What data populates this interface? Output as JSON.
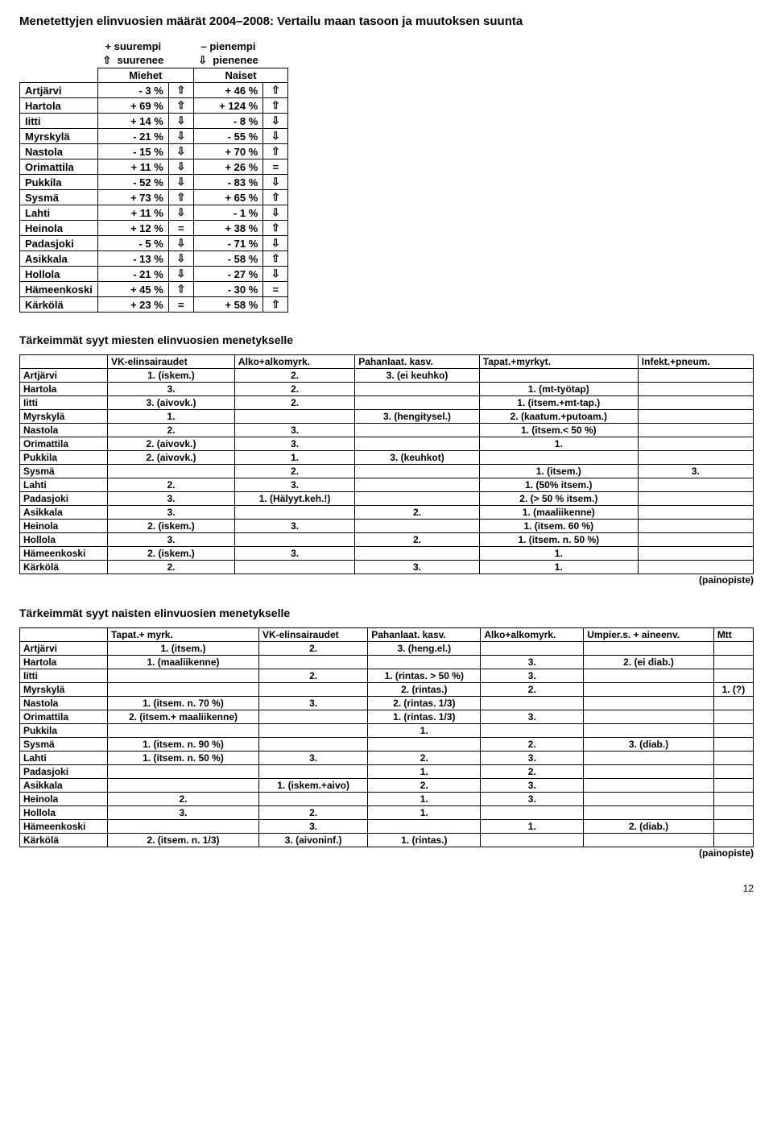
{
  "title_main": "Menetettyjen elinvuosien määrät 2004–2008: Vertailu maan tasoon ja muutoksen suunta",
  "legend": {
    "plus": "+ suurempi",
    "minus": "– pienempi",
    "up_word": "suurenee",
    "down_word": "pienenee",
    "up_glyph": "⇧",
    "down_glyph": "⇩"
  },
  "t1": {
    "head_men": "Miehet",
    "head_women": "Naiset",
    "rows": [
      {
        "n": "Artjärvi",
        "m": "- 3 %",
        "ma": "⇧",
        "w": "+ 46 %",
        "wa": "⇧"
      },
      {
        "n": "Hartola",
        "m": "+ 69 %",
        "ma": "⇧",
        "w": "+ 124 %",
        "wa": "⇧"
      },
      {
        "n": "Iitti",
        "m": "+ 14 %",
        "ma": "⇩",
        "w": "- 8 %",
        "wa": "⇩"
      },
      {
        "n": "Myrskylä",
        "m": "- 21 %",
        "ma": "⇩",
        "w": "- 55 %",
        "wa": "⇩"
      },
      {
        "n": "Nastola",
        "m": "- 15 %",
        "ma": "⇩",
        "w": "+ 70 %",
        "wa": "⇧"
      },
      {
        "n": "Orimattila",
        "m": "+ 11 %",
        "ma": "⇩",
        "w": "+ 26 %",
        "wa": "="
      },
      {
        "n": "Pukkila",
        "m": "- 52 %",
        "ma": "⇩",
        "w": "- 83 %",
        "wa": "⇩"
      },
      {
        "n": "Sysmä",
        "m": "+ 73 %",
        "ma": "⇧",
        "w": "+ 65 %",
        "wa": "⇧"
      },
      {
        "n": "Lahti",
        "m": "+ 11 %",
        "ma": "⇩",
        "w": "- 1 %",
        "wa": "⇩"
      },
      {
        "n": "Heinola",
        "m": "+ 12 %",
        "ma": "=",
        "w": "+ 38 %",
        "wa": "⇧"
      },
      {
        "n": "Padasjoki",
        "m": "- 5 %",
        "ma": "⇩",
        "w": "- 71 %",
        "wa": "⇩"
      },
      {
        "n": "Asikkala",
        "m": "- 13 %",
        "ma": "⇩",
        "w": "- 58 %",
        "wa": "⇧"
      },
      {
        "n": "Hollola",
        "m": "- 21 %",
        "ma": "⇩",
        "w": "- 27 %",
        "wa": "⇩"
      },
      {
        "n": "Hämeenkoski",
        "m": "+ 45 %",
        "ma": "⇧",
        "w": "- 30 %",
        "wa": "="
      },
      {
        "n": "Kärkölä",
        "m": "+ 23 %",
        "ma": "=",
        "w": "+ 58 %",
        "wa": "⇧"
      }
    ]
  },
  "subtitle_men": "Tärkeimmät syyt miesten elinvuosien menetykselle",
  "t2": {
    "heads": [
      "",
      "VK-elinsairaudet",
      "Alko+alkomyrk.",
      "Pahanlaat. kasv.",
      "Tapat.+myrkyt.",
      "Infekt.+pneum."
    ],
    "rows": [
      [
        "Artjärvi",
        "1. (iskem.)",
        "2.",
        "3. (ei keuhko)",
        "",
        ""
      ],
      [
        "Hartola",
        "3.",
        "2.",
        "",
        "1. (mt-työtap)",
        ""
      ],
      [
        "Iitti",
        "3. (aivovk.)",
        "2.",
        "",
        "1. (itsem.+mt-tap.)",
        ""
      ],
      [
        "Myrskylä",
        "1.",
        "",
        "3. (hengitysel.)",
        "2. (kaatum.+putoam.)",
        ""
      ],
      [
        "Nastola",
        "2.",
        "3.",
        "",
        "1. (itsem.< 50 %)",
        ""
      ],
      [
        "Orimattila",
        "2. (aivovk.)",
        "3.",
        "",
        "1.",
        ""
      ],
      [
        "Pukkila",
        "2. (aivovk.)",
        "1.",
        "3. (keuhkot)",
        "",
        ""
      ],
      [
        "Sysmä",
        "",
        "2.",
        "",
        "1. (itsem.)",
        "3."
      ],
      [
        "Lahti",
        "2.",
        "3.",
        "",
        "1. (50% itsem.)",
        ""
      ],
      [
        "Padasjoki",
        "3.",
        "1. (Hälyyt.keh.!)",
        "",
        "2. (> 50  % itsem.)",
        ""
      ],
      [
        "Asikkala",
        "3.",
        "",
        "2.",
        "1. (maaliikenne)",
        ""
      ],
      [
        "Heinola",
        "2. (iskem.)",
        "3.",
        "",
        "1. (itsem. 60 %)",
        ""
      ],
      [
        "Hollola",
        "3.",
        "",
        "2.",
        "1. (itsem. n. 50 %)",
        ""
      ],
      [
        "Hämeenkoski",
        "2. (iskem.)",
        "3.",
        "",
        "1.",
        ""
      ],
      [
        "Kärkölä",
        "2.",
        "",
        "3.",
        "1.",
        ""
      ]
    ],
    "footer": "(painopiste)"
  },
  "subtitle_women": "Tärkeimmät syyt naisten elinvuosien menetykselle",
  "t3": {
    "heads": [
      "",
      "Tapat.+ myrk.",
      "VK-elinsairaudet",
      "Pahanlaat. kasv.",
      "Alko+alkomyrk.",
      "Umpier.s. + aineenv.",
      "Mtt"
    ],
    "rows": [
      [
        "Artjärvi",
        "1. (itsem.)",
        "2.",
        "3. (heng.el.)",
        "",
        "",
        ""
      ],
      [
        "Hartola",
        "1. (maaliikenne)",
        "",
        "",
        "3.",
        "2. (ei diab.)",
        ""
      ],
      [
        "Iitti",
        "",
        "2.",
        "1. (rintas. > 50 %)",
        "3.",
        "",
        ""
      ],
      [
        "Myrskylä",
        "",
        "",
        "2. (rintas.)",
        "2.",
        "",
        "1. (?)"
      ],
      [
        "Nastola",
        "1. (itsem. n. 70 %)",
        "3.",
        "2. (rintas. 1/3)",
        "",
        "",
        ""
      ],
      [
        "Orimattila",
        "2. (itsem.+ maaliikenne)",
        "",
        "1. (rintas. 1/3)",
        "3.",
        "",
        ""
      ],
      [
        "Pukkila",
        "",
        "",
        "1.",
        "",
        "",
        ""
      ],
      [
        "Sysmä",
        "1. (itsem. n. 90 %)",
        "",
        "",
        "2.",
        "3. (diab.)",
        ""
      ],
      [
        "Lahti",
        "1. (itsem. n. 50 %)",
        "3.",
        "2.",
        "3.",
        "",
        ""
      ],
      [
        "Padasjoki",
        "",
        "",
        "1.",
        "2.",
        "",
        ""
      ],
      [
        "Asikkala",
        "",
        "1. (iskem.+aivo)",
        "2.",
        "3.",
        "",
        ""
      ],
      [
        "Heinola",
        "2.",
        "",
        "1.",
        "3.",
        "",
        ""
      ],
      [
        "Hollola",
        "3.",
        "2.",
        "1.",
        "",
        "",
        ""
      ],
      [
        "Hämeenkoski",
        "",
        "3.",
        "",
        "1.",
        "2. (diab.)",
        ""
      ],
      [
        "Kärkölä",
        "2. (itsem. n. 1/3)",
        "3. (aivoninf.)",
        "1. (rintas.)",
        "",
        "",
        ""
      ]
    ],
    "footer": "(painopiste)"
  },
  "pagenum": "12"
}
